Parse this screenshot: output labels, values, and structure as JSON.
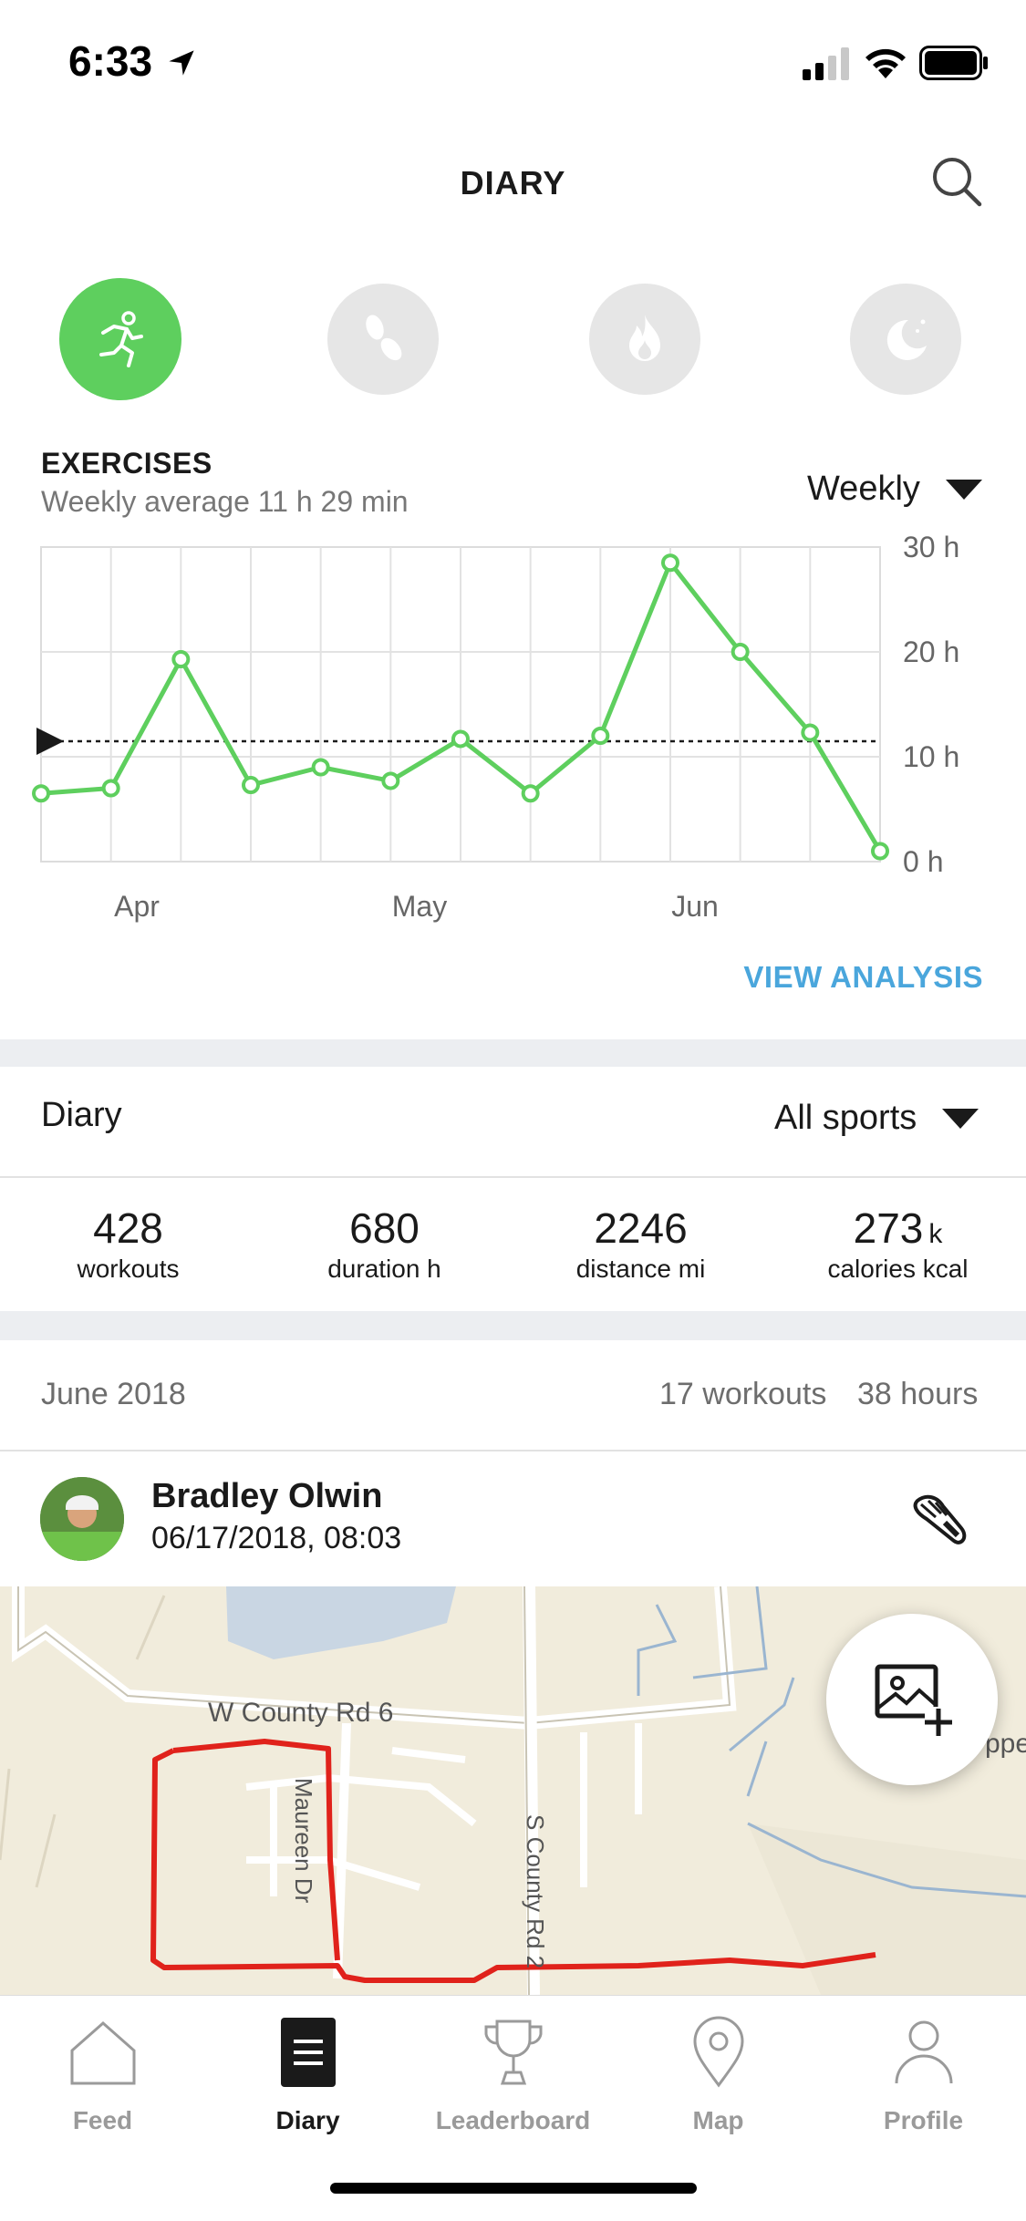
{
  "status_bar": {
    "time": "6:33"
  },
  "header": {
    "title": "DIARY"
  },
  "categories": [
    {
      "name": "exercise",
      "active": true
    },
    {
      "name": "steps",
      "active": false
    },
    {
      "name": "calories",
      "active": false
    },
    {
      "name": "sleep",
      "active": false
    }
  ],
  "exercises": {
    "title": "EXERCISES",
    "subtitle": "Weekly average 11 h 29 min",
    "period": "Weekly",
    "view_analysis": "VIEW ANALYSIS"
  },
  "chart_data": {
    "type": "line",
    "x_tick_labels": [
      "Apr",
      "May",
      "Jun"
    ],
    "y_tick_labels": [
      "30 h",
      "20 h",
      "10 h",
      "0 h"
    ],
    "ylim": [
      0,
      30
    ],
    "y_unit": "h",
    "average": 11.48,
    "series": [
      {
        "values": [
          6.5,
          7,
          19.3,
          7.3,
          9,
          7.7,
          11.7,
          6.5,
          12,
          28.5,
          20,
          12.3,
          1
        ]
      }
    ],
    "grid": true,
    "color": "#5ecf5e"
  },
  "diary": {
    "label": "Diary",
    "filter": "All sports",
    "stats": [
      {
        "value": "428",
        "unit": "",
        "label": "workouts"
      },
      {
        "value": "680",
        "unit": "",
        "label": "duration h"
      },
      {
        "value": "2246",
        "unit": "",
        "label": "distance mi"
      },
      {
        "value": "273",
        "unit": "k",
        "label": "calories kcal"
      }
    ]
  },
  "month": {
    "label": "June 2018",
    "workouts": "17 workouts",
    "hours": "38 hours"
  },
  "workout": {
    "user": "Bradley Olwin",
    "datetime": "06/17/2018, 08:03",
    "map_labels": {
      "road1": "W County Rd 6",
      "road2": "Maureen Dr",
      "road3": "S County Rd 2",
      "edge": "ppe"
    }
  },
  "tabs": [
    {
      "label": "Feed",
      "icon": "home-icon"
    },
    {
      "label": "Diary",
      "icon": "diary-icon",
      "active": true
    },
    {
      "label": "Leaderboard",
      "icon": "trophy-icon"
    },
    {
      "label": "Map",
      "icon": "map-pin-icon"
    },
    {
      "label": "Profile",
      "icon": "profile-icon"
    }
  ]
}
